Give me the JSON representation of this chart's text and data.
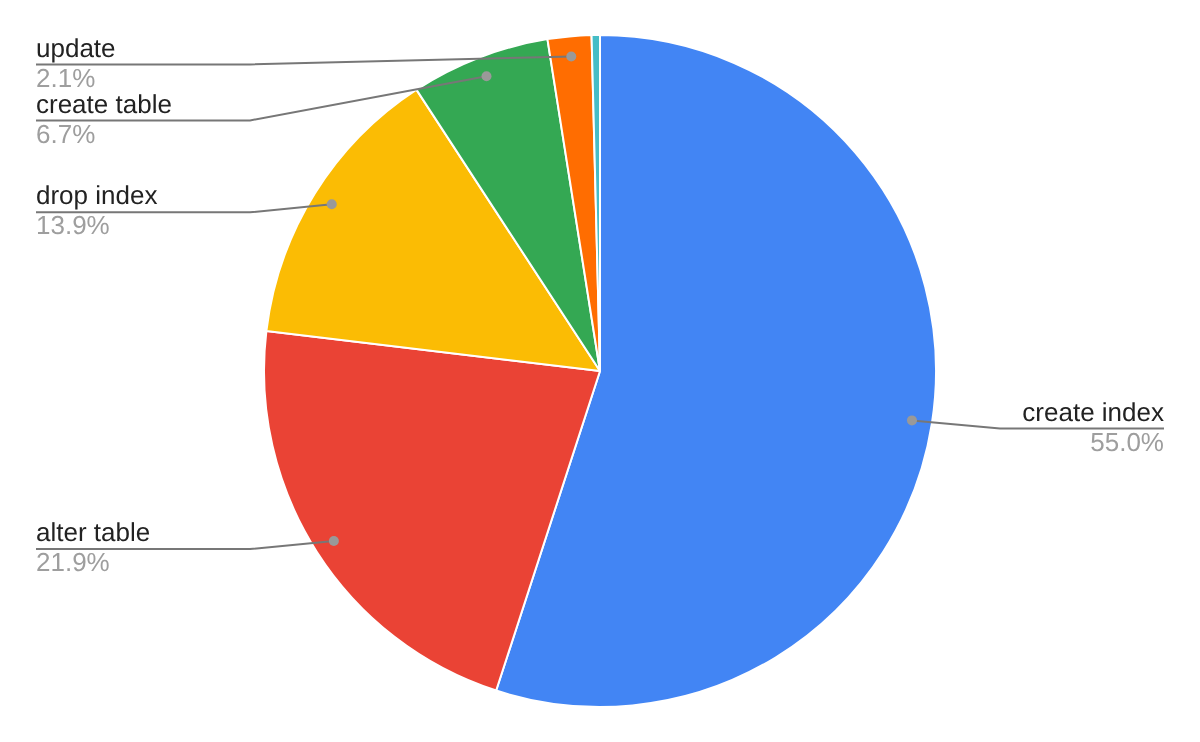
{
  "chart_data": {
    "type": "pie",
    "categories": [
      "create index",
      "alter table",
      "drop index",
      "create table",
      "update",
      null
    ],
    "values": [
      55.0,
      21.9,
      13.9,
      6.7,
      2.1,
      0.4
    ],
    "value_labels": [
      "55.0%",
      "21.9%",
      "13.9%",
      "6.7%",
      "2.1%",
      null
    ],
    "colors": [
      "#4285f4",
      "#ea4335",
      "#fbbc04",
      "#34a853",
      "#ff6d01",
      "#46bdc6"
    ],
    "legend": false
  }
}
